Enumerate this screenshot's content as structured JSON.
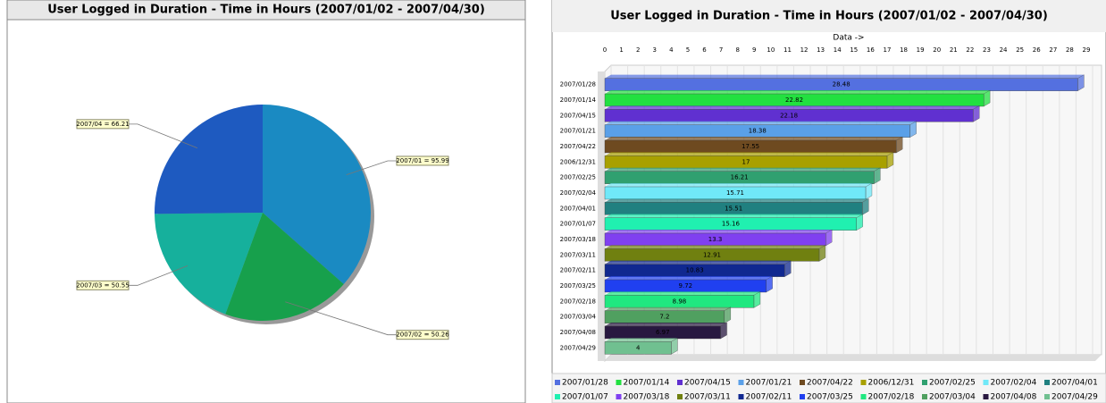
{
  "chart_data": [
    {
      "type": "pie",
      "title": "User Logged in Duration - Time in Hours (2007/01/02 - 2007/04/30)",
      "values": [
        95.99,
        50.26,
        50.55,
        66.21
      ],
      "value_labels": [
        "2007/01 = 95.99",
        "2007/02 = 50.26",
        "2007/03 = 50.55",
        "2007/04 = 66.21"
      ],
      "colors": [
        "#1a8ac2",
        "#17a04c",
        "#16b09c",
        "#1e5ac0"
      ]
    },
    {
      "type": "bar",
      "title": "User Logged in Duration - Time in Hours (2007/01/02 - 2007/04/30)",
      "x_label": "Data ->",
      "categories": [
        "2007/01/28",
        "2007/01/14",
        "2007/04/15",
        "2007/01/21",
        "2007/04/22",
        "2006/12/31",
        "2007/02/25",
        "2007/02/04",
        "2007/04/01",
        "2007/01/07",
        "2007/03/18",
        "2007/03/11",
        "2007/02/11",
        "2007/03/25",
        "2007/02/18",
        "2007/03/04",
        "2007/04/08",
        "2007/04/29"
      ],
      "values": [
        28.48,
        22.82,
        22.18,
        18.38,
        17.55,
        17,
        16.21,
        15.71,
        15.51,
        15.16,
        13.3,
        12.91,
        10.83,
        9.72,
        8.98,
        7.2,
        6.97,
        4
      ],
      "colors": [
        "#5470e0",
        "#22e040",
        "#6030d0",
        "#5aa0e8",
        "#6e4a20",
        "#a8a000",
        "#30a070",
        "#70e8f8",
        "#208080",
        "#20f0b0",
        "#8040f0",
        "#708010",
        "#102890",
        "#2040f0",
        "#20e880",
        "#50a060",
        "#281840",
        "#70c090"
      ],
      "xlim": [
        0,
        29
      ],
      "xticks": [
        0,
        1,
        2,
        3,
        4,
        5,
        6,
        7,
        8,
        9,
        10,
        11,
        12,
        13,
        14,
        15,
        16,
        17,
        18,
        19,
        20,
        21,
        22,
        23,
        24,
        25,
        26,
        27,
        28,
        29
      ],
      "grid": true,
      "legend": "bottom"
    }
  ]
}
